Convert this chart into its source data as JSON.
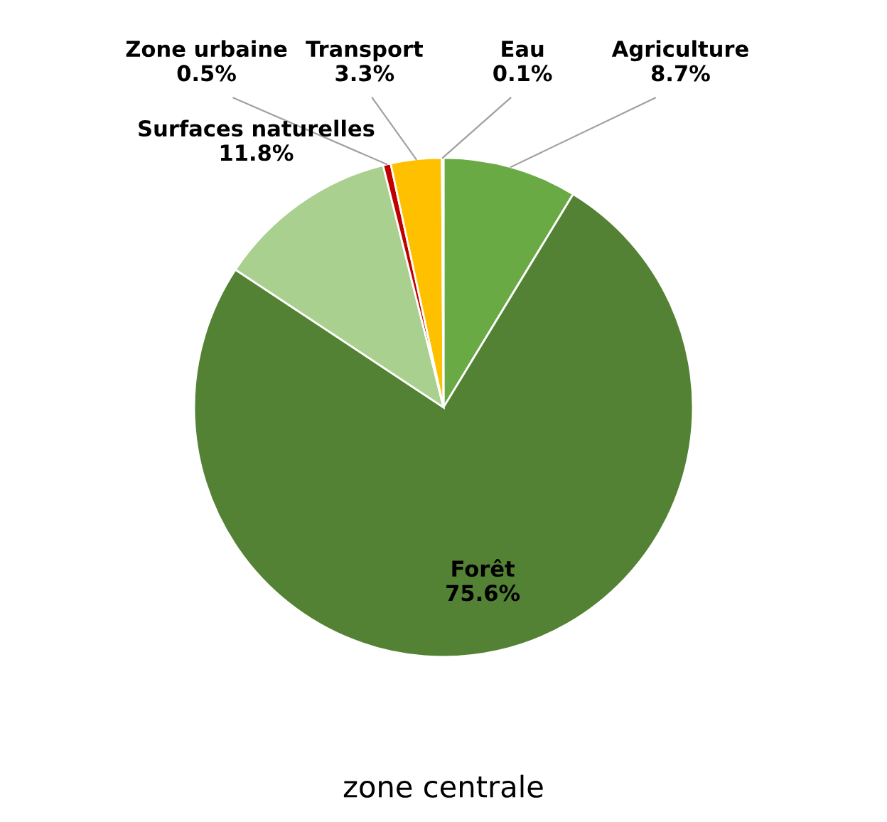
{
  "chart_data": {
    "type": "pie",
    "title": "zone centrale",
    "categories": [
      "Agriculture",
      "Forêt",
      "Surfaces naturelles",
      "Zone urbaine",
      "Transport",
      "Eau"
    ],
    "values": [
      8.7,
      75.6,
      11.8,
      0.5,
      3.3,
      0.1
    ],
    "colors": [
      "#6aaa45",
      "#548235",
      "#a9d08e",
      "#c00000",
      "#ffc000",
      "#5b9bd5"
    ],
    "value_labels": [
      "8.7%",
      "75.6%",
      "11.8%",
      "0.5%",
      "3.3%",
      "0.1%"
    ],
    "legend": false
  }
}
